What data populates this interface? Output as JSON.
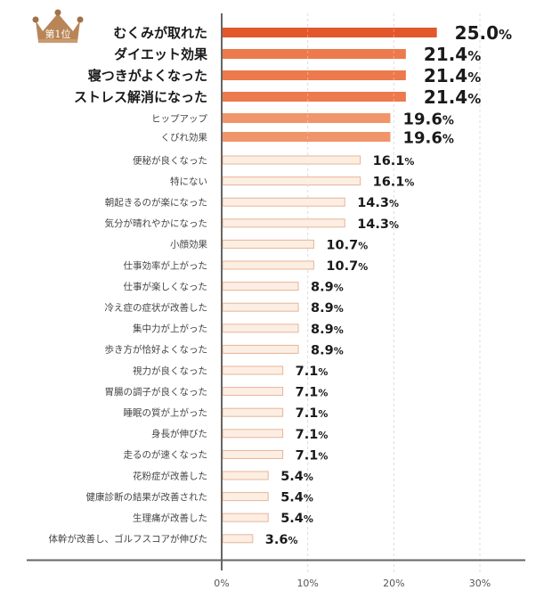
{
  "badge": {
    "label": "第1位",
    "icon": "crown-icon"
  },
  "colors": {
    "top1": "#e2572b",
    "top2_4": "#ec7a4c",
    "top5_6": "#f0956b",
    "rest_fill": "#fdeee3",
    "rest_border": "#e6b596",
    "axis": "#666666",
    "grid": "#cccccc",
    "crown": "#b98557"
  },
  "chart_data": {
    "type": "bar",
    "orientation": "horizontal",
    "title": "",
    "xlabel": "",
    "ylabel": "",
    "xlim": [
      0,
      30
    ],
    "grid": true,
    "xticks": [
      "0%",
      "10%",
      "20%",
      "30%"
    ],
    "xtick_values": [
      0,
      10,
      20,
      30
    ],
    "categories": [
      "むくみが取れた",
      "ダイエット効果",
      "寝つきがよくなった",
      "ストレス解消になった",
      "ヒップアップ",
      "くびれ効果",
      "便秘が良くなった",
      "特にない",
      "朝起きるのが楽になった",
      "気分が晴れやかになった",
      "小顔効果",
      "仕事効率が上がった",
      "仕事が楽しくなった",
      "冷え症の症状が改善した",
      "集中力が上がった",
      "歩き方が恰好よくなった",
      "視力が良くなった",
      "胃腸の調子が良くなった",
      "睡眠の質が上がった",
      "身長が伸びた",
      "走るのが速くなった",
      "花粉症が改善した",
      "健康診断の結果が改善された",
      "生理痛が改善した",
      "体幹が改善し、ゴルフスコアが伸びた"
    ],
    "values": [
      25.0,
      21.4,
      21.4,
      21.4,
      19.6,
      19.6,
      16.1,
      16.1,
      14.3,
      14.3,
      10.7,
      10.7,
      8.9,
      8.9,
      8.9,
      8.9,
      7.1,
      7.1,
      7.1,
      7.1,
      7.1,
      5.4,
      5.4,
      5.4,
      3.6
    ],
    "value_labels": [
      "25.0",
      "21.4",
      "21.4",
      "21.4",
      "19.6",
      "19.6",
      "16.1",
      "16.1",
      "14.3",
      "14.3",
      "10.7",
      "10.7",
      "8.9",
      "8.9",
      "8.9",
      "8.9",
      "7.1",
      "7.1",
      "7.1",
      "7.1",
      "7.1",
      "5.4",
      "5.4",
      "5.4",
      "3.6"
    ],
    "unit": "%"
  }
}
